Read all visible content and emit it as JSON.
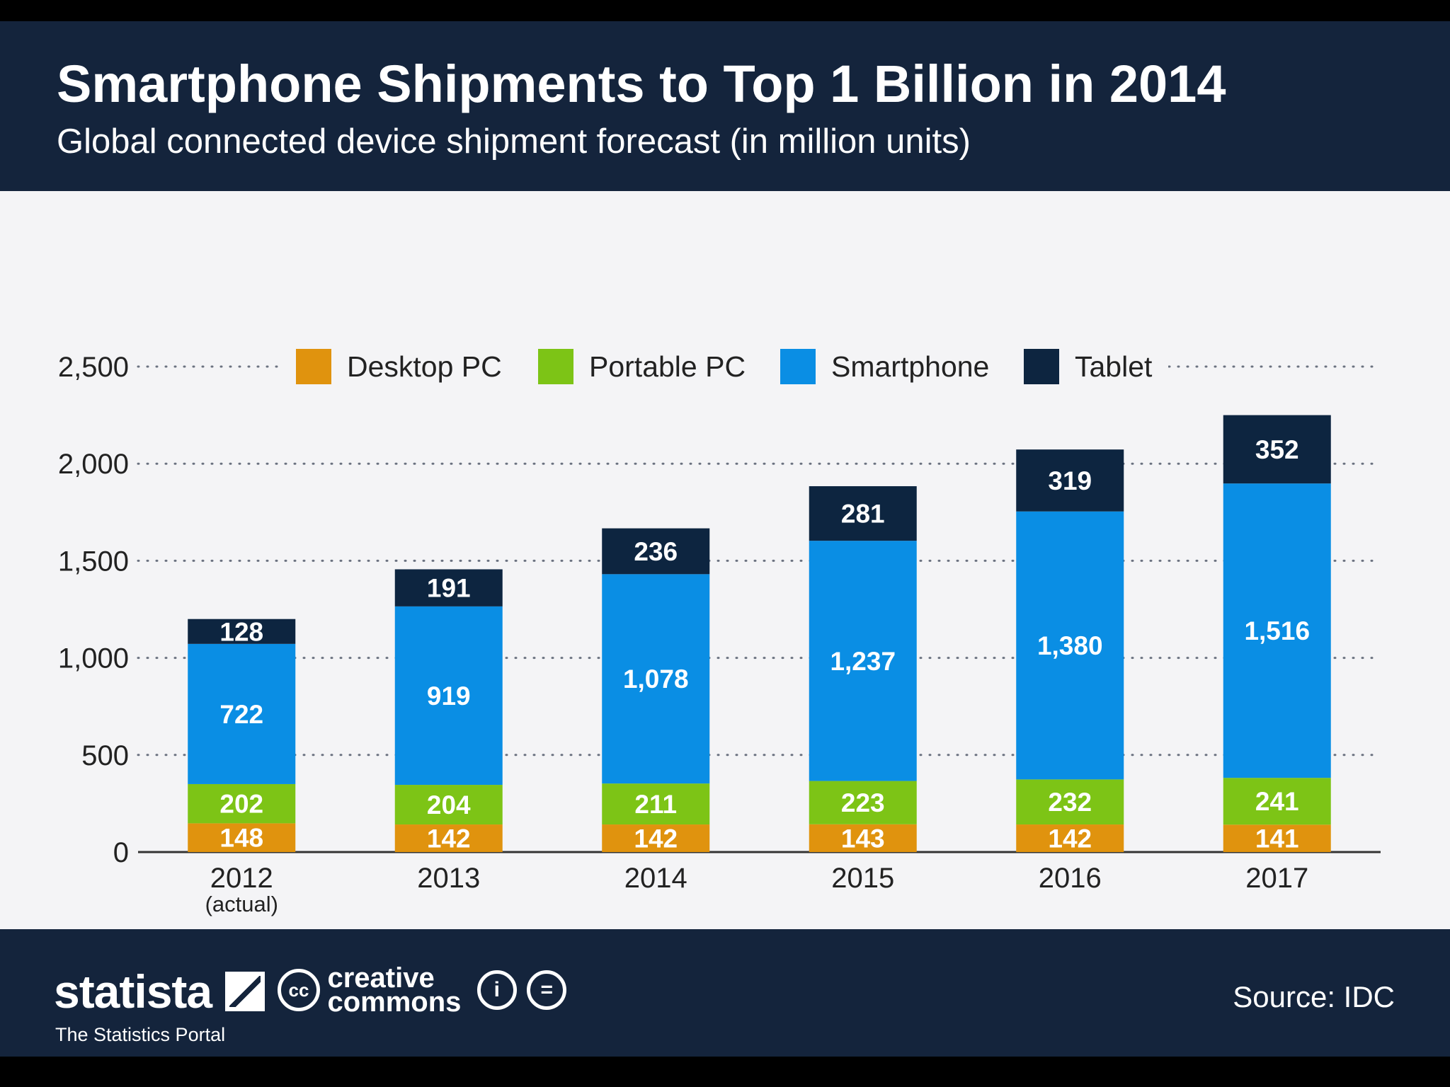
{
  "header": {
    "title": "Smartphone Shipments to Top 1 Billion in 2014",
    "subtitle": "Global connected device shipment forecast (in million units)"
  },
  "chart_data": {
    "type": "bar",
    "stacked": true,
    "title": "Smartphone Shipments to Top 1 Billion in 2014",
    "subtitle": "Global connected device shipment forecast (in million units)",
    "xlabel": "",
    "ylabel": "",
    "ylim": [
      0,
      2500
    ],
    "yticks": [
      0,
      500,
      1000,
      1500,
      2000,
      2500
    ],
    "ytick_labels": [
      "0",
      "500",
      "1,000",
      "1,500",
      "2,000",
      "2,500"
    ],
    "grid": true,
    "legend_position": "top",
    "categories": [
      "2012",
      "2013",
      "2014",
      "2015",
      "2016",
      "2017"
    ],
    "category_notes": [
      "(actual)",
      "",
      "",
      "",
      "",
      ""
    ],
    "series": [
      {
        "name": "Desktop PC",
        "color": "#e0930e",
        "values": [
          148,
          142,
          142,
          143,
          142,
          141
        ],
        "labels": [
          "148",
          "142",
          "142",
          "143",
          "142",
          "141"
        ]
      },
      {
        "name": "Portable PC",
        "color": "#7dc416",
        "values": [
          202,
          204,
          211,
          223,
          232,
          241
        ],
        "labels": [
          "202",
          "204",
          "211",
          "223",
          "232",
          "241"
        ]
      },
      {
        "name": "Smartphone",
        "color": "#0a8ee4",
        "values": [
          722,
          919,
          1078,
          1237,
          1380,
          1516
        ],
        "labels": [
          "722",
          "919",
          "1,078",
          "1,237",
          "1,380",
          "1,516"
        ]
      },
      {
        "name": "Tablet",
        "color": "#0d2540",
        "values": [
          128,
          191,
          236,
          281,
          319,
          352
        ],
        "labels": [
          "128",
          "191",
          "236",
          "281",
          "319",
          "352"
        ]
      }
    ]
  },
  "footer": {
    "brand": "statista",
    "tagline": "The Statistics Portal",
    "cc_badge": "cc",
    "cc_line1": "creative",
    "cc_line2": "commons",
    "cc_by_symbol": "i",
    "cc_nd_symbol": "=",
    "source": "Source: IDC"
  }
}
